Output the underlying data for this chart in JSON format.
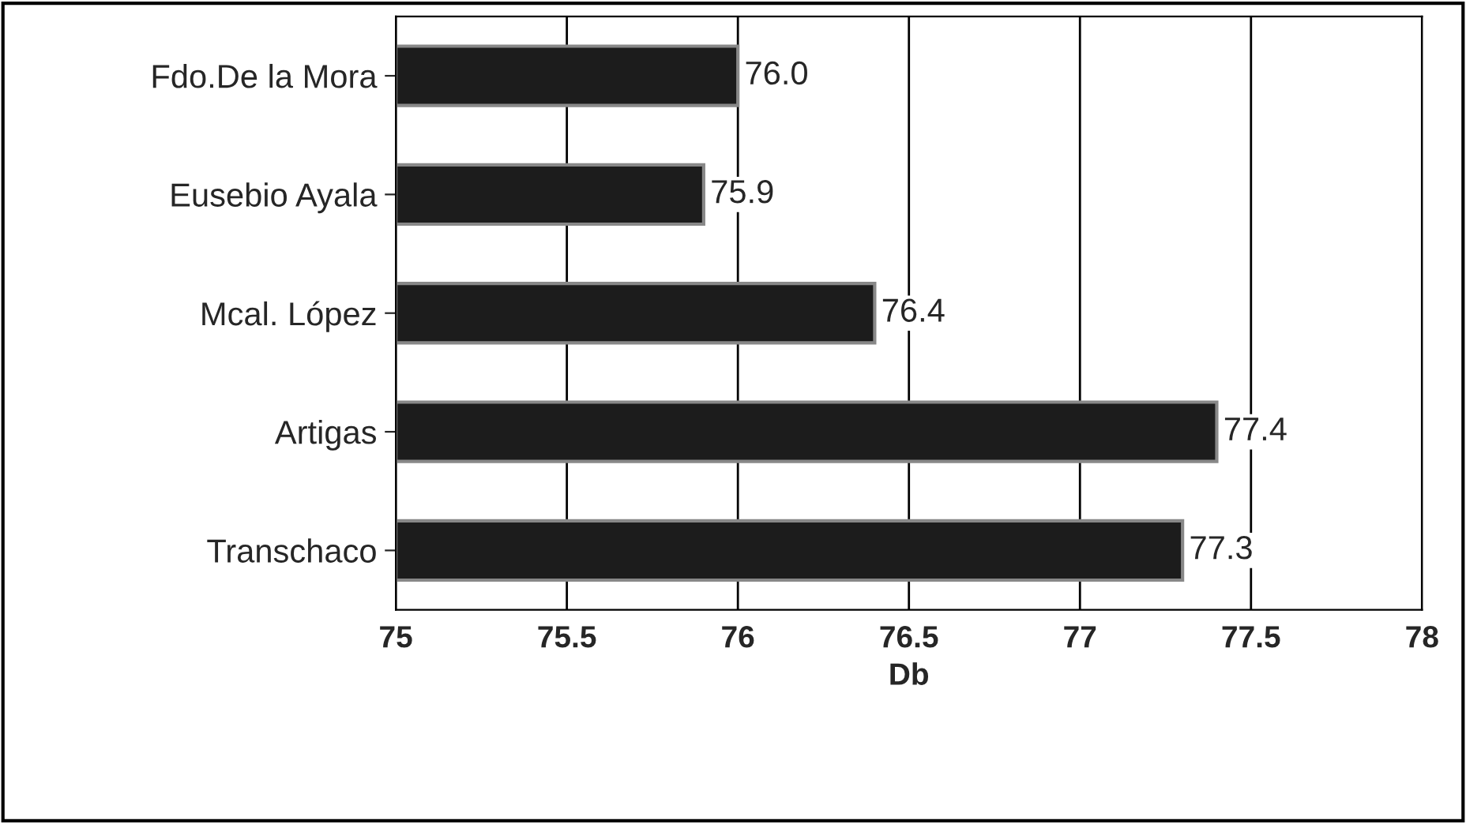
{
  "chart_data": {
    "type": "bar",
    "orientation": "horizontal",
    "xlabel": "Db",
    "categories": [
      "Fdo.De la Mora",
      "Eusebio Ayala",
      "Mcal. López",
      "Artigas",
      "Transchaco"
    ],
    "values": [
      76.0,
      75.9,
      76.4,
      77.4,
      77.3
    ],
    "value_labels": [
      "76.0",
      "75.9",
      "76.4",
      "77.4",
      "77.3"
    ],
    "color": "#1c1c1c",
    "xlim": [
      75,
      78
    ],
    "xticks": [
      75,
      75.5,
      76,
      76.5,
      77,
      77.5,
      78
    ],
    "grid": "x"
  }
}
